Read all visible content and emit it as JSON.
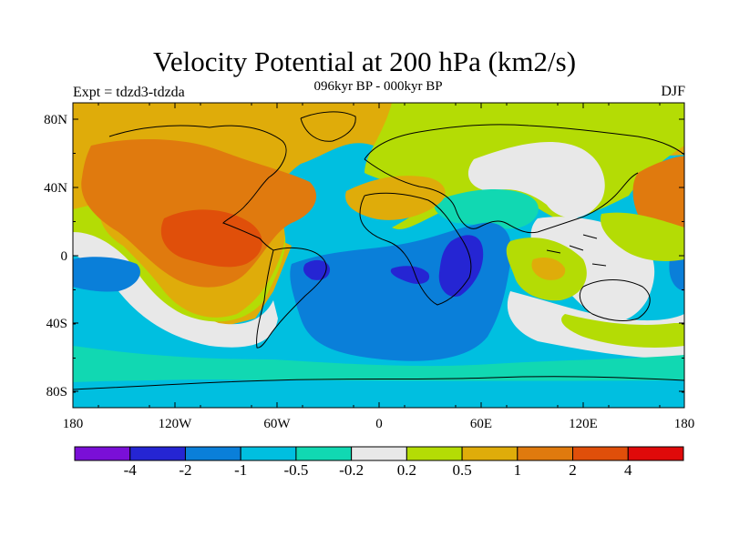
{
  "title": "Velocity Potential at 200 hPa (km2/s)",
  "subtitle": "096kyr BP - 000kyr BP",
  "left_label": "Expt = tdzd3-tdzda",
  "right_label": "DJF",
  "map": {
    "lat_ticks": [
      "80N",
      "40N",
      "0",
      "40S",
      "80S"
    ],
    "lon_ticks": [
      "180",
      "120W",
      "60W",
      "0",
      "60E",
      "120E",
      "180"
    ]
  },
  "colorbar": {
    "colors": [
      "#7a0fd7",
      "#2525d3",
      "#0a7fd9",
      "#00bfe0",
      "#11d8b2",
      "#e8e8e8",
      "#b4dc05",
      "#dfac0a",
      "#e07a0e",
      "#e04f0a",
      "#e00a0a"
    ],
    "labels": [
      "-4",
      "-2",
      "-1",
      "-0.5",
      "-0.2",
      "0.2",
      "0.5",
      "1",
      "2",
      "4"
    ]
  },
  "palette": {
    "blue_mid": "#0a7fd9",
    "cyan": "#00bfe0",
    "teal": "#11d8b2",
    "gray": "#e8e8e8",
    "lime": "#b4dc05",
    "gold": "#dfac0a",
    "orange": "#e07a0e",
    "red_orange": "#e04f0a",
    "dark_blue": "#2525d3"
  }
}
